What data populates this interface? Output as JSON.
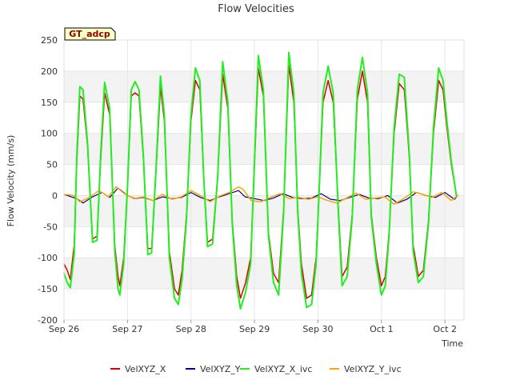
{
  "chart_data": {
    "type": "line",
    "title": "Flow Velocities",
    "xlabel": "Time",
    "ylabel": "Flow Velocity (mm/s)",
    "badge": "GT_adcp",
    "ylim": [
      -200,
      250
    ],
    "y_ticks": [
      -200,
      -150,
      -100,
      -50,
      0,
      50,
      100,
      150,
      200,
      250
    ],
    "xlim": [
      0,
      6.3
    ],
    "x_ticks": [
      {
        "value": 0,
        "label": "Sep 26"
      },
      {
        "value": 1,
        "label": "Sep 27"
      },
      {
        "value": 2,
        "label": "Sep 28"
      },
      {
        "value": 3,
        "label": "Sep 29"
      },
      {
        "value": 4,
        "label": "Sep 30"
      },
      {
        "value": 5,
        "label": "Oct 1"
      },
      {
        "value": 6,
        "label": "Oct 2"
      }
    ],
    "grid": true,
    "legend_position": "bottom",
    "series": [
      {
        "name": "VelXYZ_X",
        "color": "#dd0000",
        "width": 1.5,
        "x": [
          0.0,
          0.05,
          0.1,
          0.16,
          0.2,
          0.25,
          0.3,
          0.37,
          0.45,
          0.52,
          0.58,
          0.64,
          0.72,
          0.8,
          0.85,
          0.88,
          0.94,
          1.0,
          1.06,
          1.12,
          1.18,
          1.25,
          1.32,
          1.38,
          1.45,
          1.52,
          1.58,
          1.66,
          1.74,
          1.8,
          1.86,
          1.93,
          2.0,
          2.07,
          2.14,
          2.2,
          2.26,
          2.34,
          2.42,
          2.5,
          2.58,
          2.65,
          2.72,
          2.78,
          2.86,
          2.94,
          3.0,
          3.06,
          3.14,
          3.22,
          3.3,
          3.38,
          3.46,
          3.54,
          3.62,
          3.68,
          3.74,
          3.82,
          3.9,
          3.97,
          4.02,
          4.08,
          4.16,
          4.24,
          4.32,
          4.38,
          4.46,
          4.54,
          4.62,
          4.7,
          4.78,
          4.84,
          4.92,
          5.0,
          5.06,
          5.12,
          5.2,
          5.28,
          5.36,
          5.44,
          5.5,
          5.58,
          5.66,
          5.74,
          5.82,
          5.9,
          5.97,
          6.03,
          6.1,
          6.18
        ],
        "values": [
          -110,
          -120,
          -135,
          -80,
          50,
          160,
          155,
          80,
          -70,
          -65,
          60,
          165,
          130,
          -80,
          -130,
          -145,
          -100,
          15,
          160,
          165,
          160,
          60,
          -85,
          -85,
          40,
          175,
          120,
          -90,
          -150,
          -160,
          -120,
          -30,
          120,
          185,
          170,
          30,
          -75,
          -70,
          30,
          195,
          140,
          -40,
          -130,
          -165,
          -140,
          -100,
          50,
          205,
          160,
          -60,
          -125,
          -140,
          -20,
          210,
          150,
          -20,
          -110,
          -165,
          -160,
          -100,
          10,
          150,
          185,
          150,
          -20,
          -130,
          -115,
          -30,
          155,
          200,
          150,
          -30,
          -100,
          -145,
          -130,
          -60,
          100,
          180,
          170,
          60,
          -80,
          -130,
          -120,
          -40,
          100,
          185,
          170,
          110,
          50,
          0
        ]
      },
      {
        "name": "VelXYZ_Y",
        "color": "#00008b",
        "width": 1.2,
        "x": [
          0.0,
          0.2,
          0.3,
          0.45,
          0.6,
          0.72,
          0.85,
          1.0,
          1.12,
          1.25,
          1.4,
          1.55,
          1.7,
          1.85,
          2.0,
          2.15,
          2.3,
          2.45,
          2.6,
          2.75,
          2.85,
          3.0,
          3.15,
          3.3,
          3.45,
          3.6,
          3.75,
          3.9,
          4.05,
          4.2,
          4.35,
          4.5,
          4.65,
          4.8,
          4.95,
          5.1,
          5.25,
          5.4,
          5.55,
          5.7,
          5.85,
          6.0,
          6.15,
          6.2
        ],
        "values": [
          2,
          -5,
          -12,
          -2,
          5,
          -3,
          12,
          0,
          -5,
          -3,
          -8,
          -2,
          -5,
          -3,
          5,
          -3,
          -8,
          -2,
          3,
          8,
          -2,
          -5,
          -8,
          -4,
          3,
          -3,
          -5,
          -4,
          3,
          -6,
          -8,
          -3,
          2,
          -4,
          -5,
          0,
          -12,
          -6,
          5,
          0,
          -3,
          5,
          -6,
          0
        ]
      },
      {
        "name": "VelXYZ_X_ivc",
        "color": "#22ee22",
        "width": 2,
        "x": [
          0.0,
          0.05,
          0.1,
          0.16,
          0.2,
          0.25,
          0.3,
          0.37,
          0.45,
          0.52,
          0.58,
          0.64,
          0.72,
          0.8,
          0.85,
          0.88,
          0.94,
          1.0,
          1.06,
          1.12,
          1.18,
          1.25,
          1.32,
          1.38,
          1.45,
          1.52,
          1.58,
          1.66,
          1.74,
          1.8,
          1.86,
          1.93,
          2.0,
          2.07,
          2.14,
          2.2,
          2.26,
          2.34,
          2.42,
          2.5,
          2.58,
          2.65,
          2.72,
          2.78,
          2.86,
          2.94,
          3.0,
          3.06,
          3.14,
          3.22,
          3.3,
          3.38,
          3.46,
          3.54,
          3.62,
          3.68,
          3.74,
          3.82,
          3.9,
          3.97,
          4.02,
          4.08,
          4.16,
          4.24,
          4.32,
          4.38,
          4.46,
          4.54,
          4.62,
          4.7,
          4.78,
          4.84,
          4.92,
          5.0,
          5.06,
          5.12,
          5.2,
          5.28,
          5.36,
          5.44,
          5.5,
          5.58,
          5.66,
          5.74,
          5.82,
          5.9,
          5.97,
          6.03,
          6.1,
          6.18
        ],
        "values": [
          -125,
          -140,
          -148,
          -95,
          60,
          175,
          170,
          85,
          -75,
          -72,
          70,
          182,
          140,
          -90,
          -150,
          -160,
          -110,
          15,
          170,
          183,
          170,
          65,
          -95,
          -92,
          45,
          192,
          130,
          -100,
          -165,
          -175,
          -135,
          -35,
          130,
          205,
          185,
          30,
          -82,
          -78,
          30,
          215,
          150,
          -45,
          -145,
          -182,
          -155,
          -110,
          55,
          225,
          170,
          -65,
          -140,
          -160,
          -25,
          230,
          165,
          -25,
          -125,
          -180,
          -175,
          -110,
          10,
          165,
          208,
          165,
          -25,
          -145,
          -130,
          -35,
          170,
          222,
          165,
          -35,
          -110,
          -160,
          -145,
          -65,
          110,
          195,
          190,
          65,
          -90,
          -140,
          -130,
          -45,
          110,
          205,
          185,
          120,
          55,
          0
        ]
      },
      {
        "name": "VelXYZ_Y_ivc",
        "color": "#ffa500",
        "width": 1.5,
        "x": [
          0.0,
          0.15,
          0.25,
          0.4,
          0.55,
          0.7,
          0.82,
          0.95,
          1.1,
          1.25,
          1.4,
          1.55,
          1.7,
          1.85,
          2.0,
          2.15,
          2.3,
          2.45,
          2.6,
          2.75,
          2.82,
          2.95,
          3.1,
          3.25,
          3.4,
          3.55,
          3.7,
          3.85,
          4.0,
          4.15,
          4.3,
          4.45,
          4.6,
          4.75,
          4.9,
          5.05,
          5.2,
          5.35,
          5.5,
          5.65,
          5.8,
          5.95,
          6.1,
          6.2
        ],
        "values": [
          2,
          0,
          -10,
          -3,
          8,
          -2,
          14,
          3,
          -5,
          -2,
          -8,
          2,
          -6,
          -2,
          8,
          0,
          -10,
          -1,
          5,
          14,
          10,
          -8,
          -10,
          -3,
          3,
          -5,
          -3,
          -6,
          -2,
          -8,
          -12,
          -4,
          4,
          -6,
          -4,
          -2,
          -14,
          -5,
          6,
          2,
          -3,
          5,
          -8,
          0
        ]
      }
    ]
  }
}
